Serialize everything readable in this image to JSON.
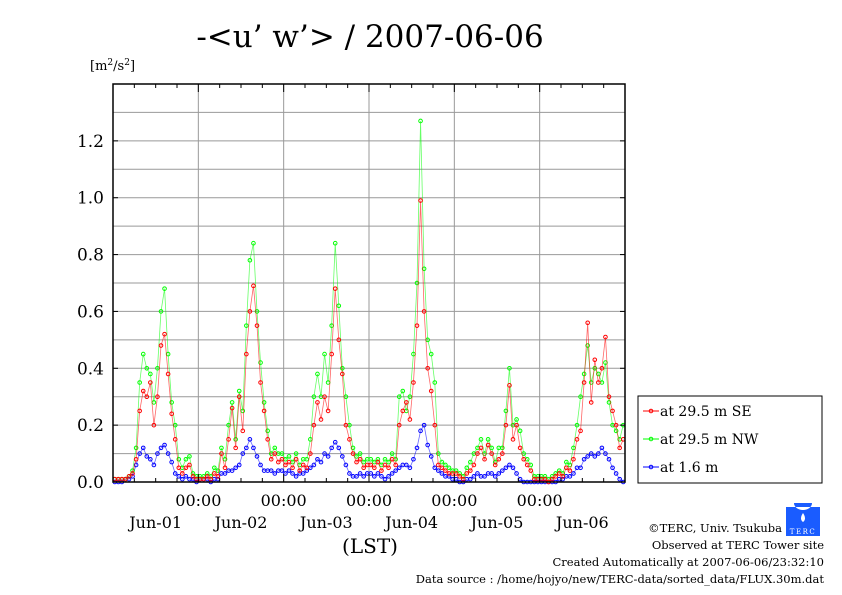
{
  "chart_data": {
    "type": "line",
    "title": "-<u’ w’> / 2007-06-06",
    "ylabel": "[m2/s2]",
    "ylabel_base": "[m",
    "ylabel_mid": "/s",
    "ylabel_close": "]",
    "ylabel_exp": "2",
    "xlabel": "(LST)",
    "ylim": [
      0,
      1.4
    ],
    "yticks": [
      0.0,
      0.2,
      0.4,
      0.6,
      0.8,
      1.0,
      1.2
    ],
    "ytick_labels": [
      "0.0",
      "0.2",
      "0.4",
      "0.6",
      "0.8",
      "1.0",
      "1.2"
    ],
    "ygrid_step": 0.1,
    "x_unit": "hours since Jun-01 00:00",
    "xlim": [
      0,
      144
    ],
    "xtick_time_labels": [
      "00:00",
      "00:00",
      "00:00",
      "00:00",
      "00:00"
    ],
    "day_labels": [
      "Jun-01",
      "Jun-02",
      "Jun-03",
      "Jun-04",
      "Jun-05",
      "Jun-06"
    ],
    "grid": true,
    "legend_position": "right-bottom",
    "series": [
      {
        "name": "at 29.5 m SE",
        "color": "#ff0000",
        "values": [
          0.01,
          0.01,
          0.01,
          0.01,
          0.02,
          0.03,
          0.08,
          0.25,
          0.32,
          0.3,
          0.35,
          0.2,
          0.3,
          0.48,
          0.52,
          0.38,
          0.24,
          0.15,
          0.05,
          0.03,
          0.05,
          0.06,
          0.02,
          0.01,
          0.01,
          0.01,
          0.02,
          0.01,
          0.03,
          0.02,
          0.1,
          0.05,
          0.15,
          0.26,
          0.12,
          0.3,
          0.18,
          0.45,
          0.6,
          0.69,
          0.55,
          0.35,
          0.25,
          0.15,
          0.08,
          0.1,
          0.07,
          0.08,
          0.06,
          0.07,
          0.05,
          0.08,
          0.04,
          0.06,
          0.05,
          0.1,
          0.2,
          0.28,
          0.22,
          0.3,
          0.25,
          0.45,
          0.68,
          0.5,
          0.38,
          0.2,
          0.15,
          0.1,
          0.07,
          0.08,
          0.05,
          0.06,
          0.06,
          0.05,
          0.07,
          0.04,
          0.06,
          0.05,
          0.08,
          0.06,
          0.2,
          0.25,
          0.28,
          0.22,
          0.35,
          0.55,
          0.99,
          0.6,
          0.4,
          0.32,
          0.2,
          0.06,
          0.05,
          0.04,
          0.03,
          0.03,
          0.03,
          0.02,
          0.01,
          0.03,
          0.04,
          0.06,
          0.1,
          0.12,
          0.08,
          0.13,
          0.1,
          0.06,
          0.08,
          0.1,
          0.2,
          0.34,
          0.15,
          0.2,
          0.12,
          0.08,
          0.06,
          0.04,
          0.01,
          0.01,
          0.01,
          0.01,
          0.0,
          0.01,
          0.02,
          0.03,
          0.02,
          0.05,
          0.04,
          0.08,
          0.15,
          0.18,
          0.35,
          0.56,
          0.28,
          0.43,
          0.35,
          0.4,
          0.51,
          0.3,
          0.25,
          0.2,
          0.12,
          0.15
        ]
      },
      {
        "name": "at 29.5 m NW",
        "color": "#00ff00",
        "values": [
          0.01,
          0.01,
          0.01,
          0.01,
          0.02,
          0.04,
          0.12,
          0.35,
          0.45,
          0.4,
          0.38,
          0.28,
          0.4,
          0.6,
          0.68,
          0.45,
          0.28,
          0.2,
          0.08,
          0.05,
          0.08,
          0.09,
          0.03,
          0.02,
          0.02,
          0.02,
          0.03,
          0.02,
          0.05,
          0.04,
          0.12,
          0.08,
          0.2,
          0.28,
          0.15,
          0.32,
          0.25,
          0.55,
          0.78,
          0.84,
          0.6,
          0.42,
          0.28,
          0.18,
          0.1,
          0.12,
          0.1,
          0.1,
          0.08,
          0.09,
          0.07,
          0.1,
          0.06,
          0.08,
          0.08,
          0.15,
          0.3,
          0.38,
          0.3,
          0.45,
          0.35,
          0.55,
          0.84,
          0.62,
          0.4,
          0.3,
          0.2,
          0.12,
          0.09,
          0.1,
          0.07,
          0.08,
          0.08,
          0.07,
          0.08,
          0.06,
          0.08,
          0.07,
          0.1,
          0.08,
          0.3,
          0.32,
          0.25,
          0.3,
          0.45,
          0.7,
          1.27,
          0.75,
          0.5,
          0.45,
          0.35,
          0.1,
          0.07,
          0.06,
          0.05,
          0.04,
          0.04,
          0.03,
          0.02,
          0.05,
          0.07,
          0.1,
          0.12,
          0.15,
          0.1,
          0.15,
          0.12,
          0.07,
          0.12,
          0.12,
          0.25,
          0.4,
          0.2,
          0.22,
          0.18,
          0.1,
          0.08,
          0.06,
          0.02,
          0.02,
          0.02,
          0.02,
          0.01,
          0.02,
          0.03,
          0.04,
          0.03,
          0.07,
          0.06,
          0.12,
          0.2,
          0.3,
          0.38,
          0.48,
          0.35,
          0.4,
          0.38,
          0.35,
          0.42,
          0.28,
          0.2,
          0.18,
          0.15,
          0.2
        ]
      },
      {
        "name": "at 1.6 m",
        "color": "#0000ff",
        "values": [
          0.0,
          0.0,
          0.0,
          0.01,
          0.01,
          0.02,
          0.06,
          0.1,
          0.12,
          0.09,
          0.08,
          0.06,
          0.1,
          0.12,
          0.13,
          0.1,
          0.07,
          0.03,
          0.02,
          0.01,
          0.02,
          0.01,
          0.01,
          0.0,
          0.01,
          0.01,
          0.01,
          0.0,
          0.01,
          0.01,
          0.03,
          0.03,
          0.04,
          0.04,
          0.05,
          0.06,
          0.1,
          0.12,
          0.15,
          0.12,
          0.09,
          0.06,
          0.04,
          0.04,
          0.04,
          0.03,
          0.04,
          0.04,
          0.03,
          0.04,
          0.03,
          0.02,
          0.03,
          0.03,
          0.04,
          0.05,
          0.06,
          0.08,
          0.07,
          0.1,
          0.09,
          0.12,
          0.14,
          0.12,
          0.09,
          0.06,
          0.03,
          0.02,
          0.02,
          0.03,
          0.02,
          0.03,
          0.03,
          0.02,
          0.03,
          0.02,
          0.01,
          0.02,
          0.03,
          0.04,
          0.05,
          0.06,
          0.06,
          0.05,
          0.08,
          0.12,
          0.18,
          0.2,
          0.13,
          0.09,
          0.05,
          0.04,
          0.03,
          0.02,
          0.02,
          0.01,
          0.01,
          0.0,
          0.0,
          0.01,
          0.01,
          0.02,
          0.03,
          0.02,
          0.02,
          0.03,
          0.03,
          0.02,
          0.03,
          0.04,
          0.05,
          0.06,
          0.05,
          0.03,
          0.01,
          0.0,
          0.0,
          0.0,
          0.0,
          0.0,
          0.0,
          0.0,
          0.0,
          0.0,
          0.0,
          0.01,
          0.01,
          0.02,
          0.02,
          0.03,
          0.05,
          0.05,
          0.08,
          0.09,
          0.1,
          0.09,
          0.1,
          0.12,
          0.1,
          0.08,
          0.05,
          0.03,
          0.01,
          0.0
        ]
      }
    ]
  },
  "footer": {
    "copyright": "©TERC, Univ. Tsukuba",
    "logo_text": "TERC",
    "observed": "Observed at TERC Tower site",
    "created": "Created Automatically at 2007-06-06/23:32:10",
    "source": "Data source : /home/hojyo/new/TERC-data/sorted_data/FLUX.30m.dat"
  }
}
